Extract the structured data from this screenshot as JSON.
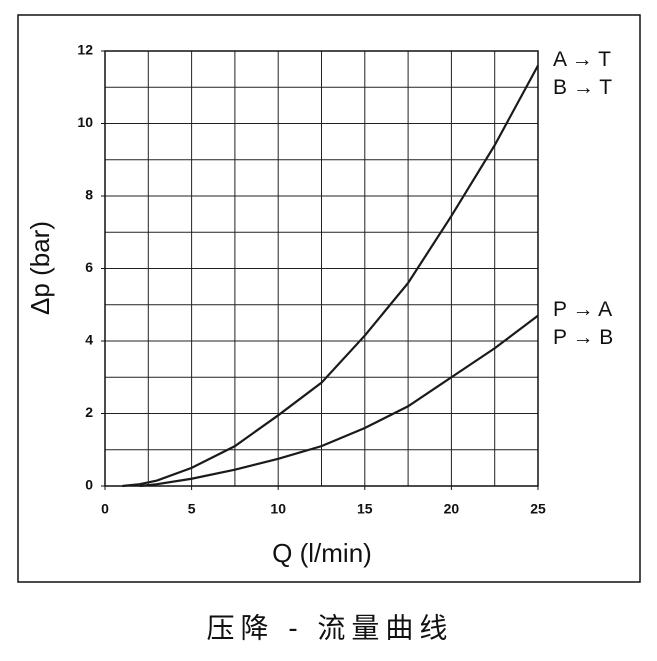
{
  "chart_data": {
    "type": "line",
    "xlabel": "Q (l/min)",
    "ylabel": "Δp (bar)",
    "caption": "压降 - 流量曲线",
    "xlim": [
      0,
      25
    ],
    "ylim": [
      0,
      12
    ],
    "xticks": [
      0,
      5,
      10,
      15,
      20,
      25
    ],
    "yticks": [
      0,
      2,
      4,
      6,
      8,
      10,
      12
    ],
    "xgrid_step": 2.5,
    "ygrid_step": 1,
    "grid": true,
    "series": [
      {
        "labels": [
          "A → T",
          "B → T"
        ],
        "color": "#1a1a1a",
        "x": [
          1,
          2,
          3,
          5,
          7.5,
          10,
          12.5,
          15,
          17.5,
          20,
          22.5,
          25
        ],
        "values": [
          0,
          0.05,
          0.15,
          0.5,
          1.1,
          1.95,
          2.85,
          4.15,
          5.6,
          7.45,
          9.4,
          11.6
        ]
      },
      {
        "labels": [
          "P → A",
          "P → B"
        ],
        "color": "#1a1a1a",
        "x": [
          2,
          3,
          5,
          7.5,
          10,
          12.5,
          15,
          17.5,
          20,
          22.5,
          25
        ],
        "values": [
          0,
          0.05,
          0.2,
          0.45,
          0.75,
          1.1,
          1.6,
          2.2,
          3.0,
          3.8,
          4.7
        ]
      }
    ]
  }
}
